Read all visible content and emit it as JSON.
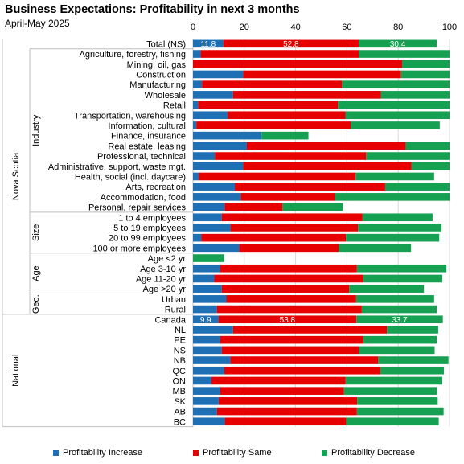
{
  "title": "Business Expectations: Profitability in next 3 months",
  "subtitle": "April-May 2025",
  "chart_data": {
    "type": "bar",
    "orientation": "horizontal",
    "stacked": true,
    "xlim": [
      0,
      100
    ],
    "x_ticks": [
      "0",
      "20",
      "40",
      "60",
      "80",
      "100"
    ],
    "x_tick_values": [
      0,
      20,
      40,
      60,
      80,
      100
    ],
    "grid": true,
    "legend_position": "bottom",
    "colors": {
      "increase": "#1f6fb4",
      "same": "#e60000",
      "decrease": "#16a152"
    },
    "series": [
      {
        "name": "Profitability Increase",
        "key": "increase"
      },
      {
        "name": "Profitability Same",
        "key": "same"
      },
      {
        "name": "Profitability Decrease",
        "key": "decrease"
      }
    ],
    "categories": [
      "Total (NS)",
      "Agriculture, forestry, fishing",
      "Mining, oil, gas",
      "Construction",
      "Manufacturing",
      "Wholesale",
      "Retail",
      "Transportation, warehousing",
      "Information, cultural",
      "Finance, insurance",
      "Real estate, leasing",
      "Professional, technical",
      "Administrative, support, waste mgt.",
      "Health, social (incl. daycare)",
      "Arts, recreation",
      "Accommodation, food",
      "Personal, repair services",
      "1 to 4 employees",
      "5 to 19 employees",
      "20 to 99 employees",
      "100 or more employees",
      "Age <2 yr",
      "Age 3-10 yr",
      "Age 11-20 yr",
      "Age >20 yr",
      "Urban",
      "Rural",
      "Canada",
      "NL",
      "PE",
      "NS",
      "NB",
      "QC",
      "ON",
      "MB",
      "SK",
      "AB",
      "BC"
    ],
    "values": {
      "increase": [
        11.8,
        3,
        0,
        19.6,
        3.5,
        15.6,
        2,
        13.5,
        1.3,
        26.7,
        21,
        8.5,
        19.6,
        2.2,
        16.3,
        18.6,
        12.3,
        11.2,
        14.6,
        3.3,
        18,
        0,
        10.6,
        8.3,
        11.2,
        13,
        9.3,
        9.9,
        15.6,
        10.6,
        11.2,
        14.6,
        12.2,
        7.2,
        10.6,
        10,
        9.3,
        12.4
      ],
      "same": [
        52.8,
        61.6,
        81.5,
        61.5,
        54.6,
        57.6,
        54.5,
        45.9,
        60.2,
        0,
        61.9,
        59,
        65.5,
        61.2,
        58.6,
        36.7,
        22.6,
        54.9,
        49.7,
        56.3,
        38.8,
        0,
        53.3,
        58.1,
        49.7,
        50.6,
        56.5,
        53.8,
        60,
        55.8,
        53.5,
        57.6,
        60.8,
        52.3,
        48.2,
        54,
        54.6,
        47.3
      ],
      "decrease": [
        30.4,
        35.4,
        18.5,
        18.9,
        41.9,
        26.8,
        43.5,
        40.6,
        34.7,
        18.3,
        17.1,
        32.5,
        14.9,
        30.6,
        25.1,
        44.7,
        23.5,
        27.3,
        32.6,
        36.4,
        28.2,
        12.2,
        34.9,
        30.8,
        29.1,
        30.4,
        29.2,
        33.7,
        20,
        28.6,
        29.5,
        27.4,
        24.8,
        37.7,
        36.3,
        31.4,
        33.8,
        36.1
      ]
    },
    "data_labels": [
      {
        "row": 0,
        "series": "increase",
        "text": "11.8"
      },
      {
        "row": 0,
        "series": "same",
        "text": "52.8"
      },
      {
        "row": 0,
        "series": "decrease",
        "text": "30.4"
      },
      {
        "row": 27,
        "series": "increase",
        "text": "9.9"
      },
      {
        "row": 27,
        "series": "same",
        "text": "53.8"
      },
      {
        "row": 27,
        "series": "decrease",
        "text": "33.7"
      }
    ],
    "groups": [
      {
        "label": "Nova Scotia",
        "start": 0,
        "end": 26
      },
      {
        "label": "National",
        "start": 27,
        "end": 37
      }
    ],
    "subgroups": [
      {
        "label": "Industry",
        "start": 1,
        "end": 16
      },
      {
        "label": "Size",
        "start": 17,
        "end": 20
      },
      {
        "label": "Age",
        "start": 21,
        "end": 24
      },
      {
        "label": "Geo.",
        "start": 25,
        "end": 26
      }
    ]
  }
}
